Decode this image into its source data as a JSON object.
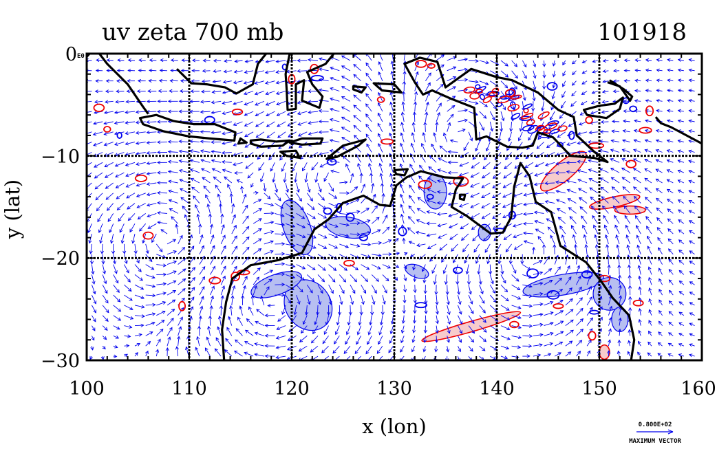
{
  "figure": {
    "title_left": "uv zeta 700 mb",
    "title_right": "101918",
    "corner_label": "E0",
    "xlabel": "x (lon)",
    "ylabel": "y (lat)",
    "reference_vector_value": "0.800E+02",
    "reference_vector_label": "MAXIMUM VECTOR"
  },
  "chart_data": {
    "type": "map",
    "xlabel": "x (lon)",
    "ylabel": "y (lat)",
    "xlim": [
      100,
      160
    ],
    "ylim": [
      -30,
      0
    ],
    "x_ticks": [
      100,
      110,
      120,
      130,
      140,
      150,
      160
    ],
    "y_ticks": [
      0,
      -10,
      -20,
      -30
    ],
    "x_tick_labels": [
      "100",
      "110",
      "120",
      "130",
      "140",
      "150",
      "160"
    ],
    "y_tick_labels": [
      "0",
      "−10",
      "−20",
      "−30"
    ],
    "grid": true,
    "colors": {
      "vectors": "#0000ee",
      "positive_vorticity": "#ee0000",
      "positive_fill": "#f6c6c6",
      "negative_vorticity": "#0000ee",
      "negative_fill": "#aab4ee",
      "coastline": "#000000"
    }
  }
}
